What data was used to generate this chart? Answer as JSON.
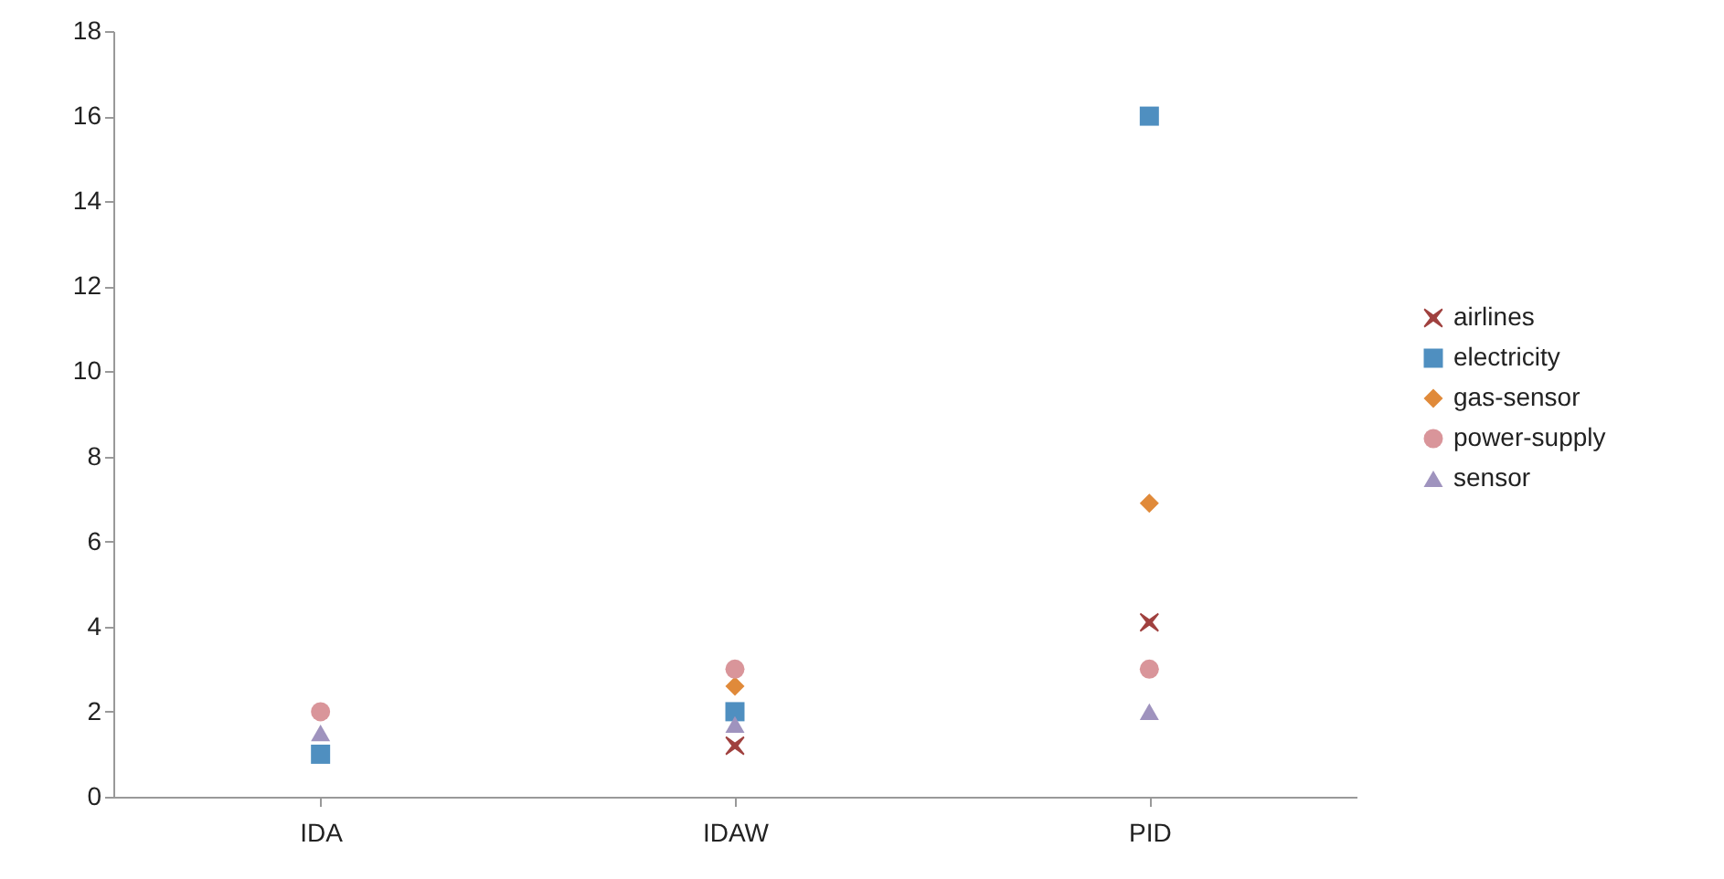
{
  "chart_data": {
    "type": "scatter",
    "categories": [
      "IDA",
      "IDAW",
      "PID"
    ],
    "series": [
      {
        "name": "airlines",
        "color": "#a0413f",
        "marker": "cross",
        "values": [
          null,
          1.2,
          4.1
        ]
      },
      {
        "name": "electricity",
        "color": "#4f8fc0",
        "marker": "square",
        "values": [
          1,
          2,
          16
        ]
      },
      {
        "name": "gas-sensor",
        "color": "#e08a3a",
        "marker": "diamond",
        "values": [
          null,
          2.6,
          6.9
        ]
      },
      {
        "name": "power-supply",
        "color": "#d9959a",
        "marker": "circle",
        "values": [
          2,
          3,
          3
        ]
      },
      {
        "name": "sensor",
        "color": "#9f93be",
        "marker": "triangle",
        "values": [
          1.5,
          1.7,
          2
        ]
      }
    ],
    "ylim": [
      0,
      18
    ],
    "yticks": [
      0,
      2,
      4,
      6,
      8,
      10,
      12,
      14,
      16,
      18
    ],
    "grid": false,
    "legend": "right"
  }
}
